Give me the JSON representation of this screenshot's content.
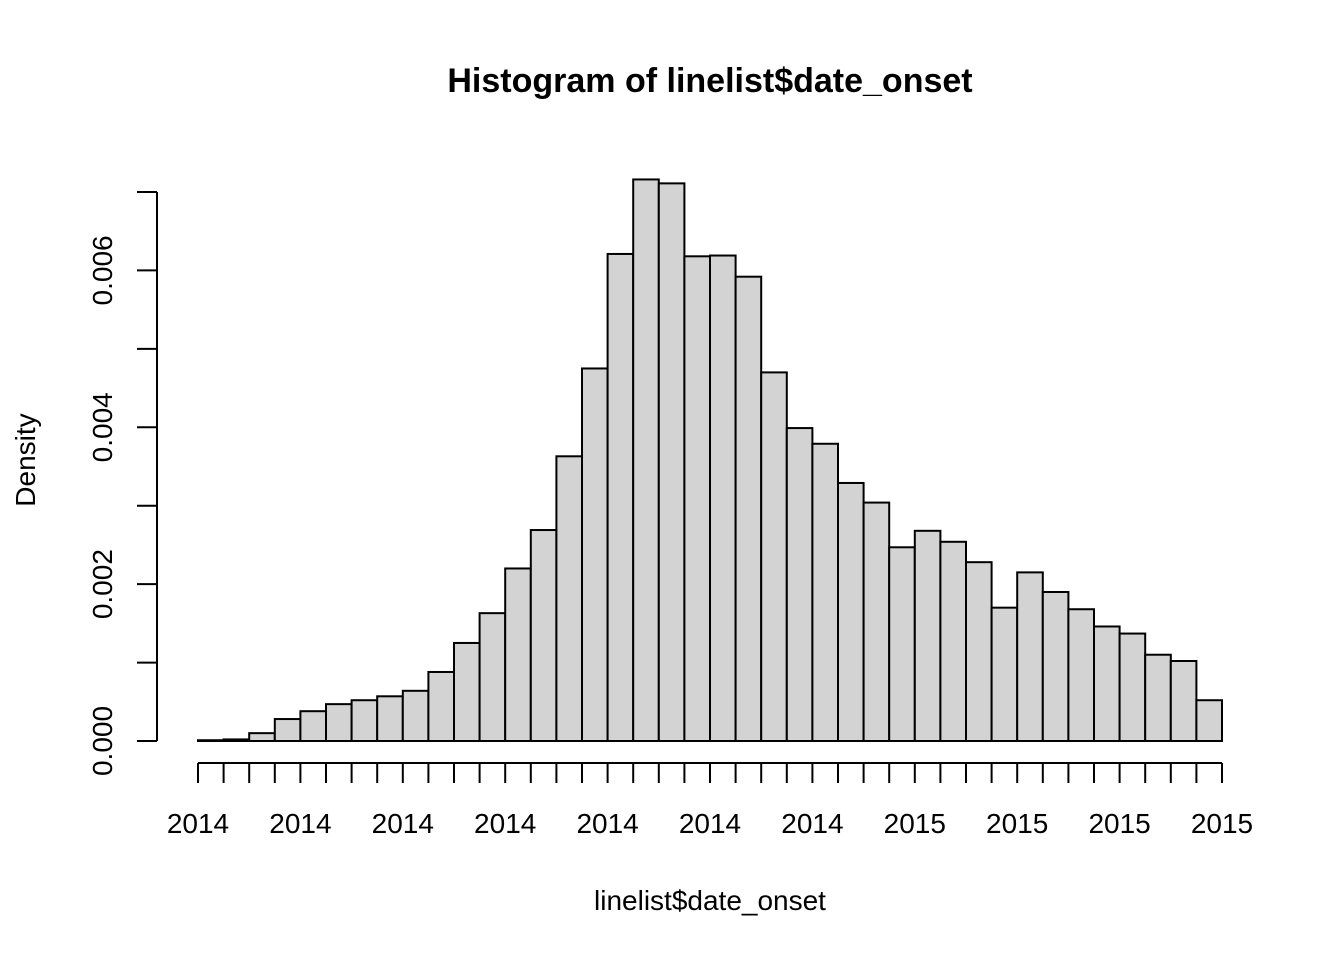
{
  "chart_data": {
    "type": "bar",
    "title": "Histogram of linelist$date_onset",
    "xlabel": "linelist$date_onset",
    "ylabel": "Density",
    "ylim": [
      0,
      0.007
    ],
    "y_ticks": [
      "0.000",
      "0.002",
      "0.004",
      "0.006"
    ],
    "y_tick_values": [
      0,
      0.001,
      0.002,
      0.003,
      0.004,
      0.005,
      0.006,
      0.007
    ],
    "x_tick_count": 41,
    "x_labels": [
      "2014",
      "2014",
      "2014",
      "2014",
      "2014",
      "2014",
      "2014",
      "2015",
      "2015",
      "2015",
      "2015"
    ],
    "bar_fill": "#d3d3d3",
    "bar_stroke": "#000000",
    "values": [
      1e-05,
      2e-05,
      0.0001,
      0.00028,
      0.00038,
      0.00047,
      0.00052,
      0.00057,
      0.00064,
      0.00088,
      0.00125,
      0.00163,
      0.0022,
      0.00269,
      0.00363,
      0.00475,
      0.00621,
      0.00716,
      0.00711,
      0.00618,
      0.00619,
      0.00592,
      0.0047,
      0.00399,
      0.00379,
      0.00329,
      0.00304,
      0.00247,
      0.00268,
      0.00254,
      0.00228,
      0.0017,
      0.00215,
      0.0019,
      0.00168,
      0.00146,
      0.00137,
      0.0011,
      0.00102,
      0.00052
    ]
  }
}
